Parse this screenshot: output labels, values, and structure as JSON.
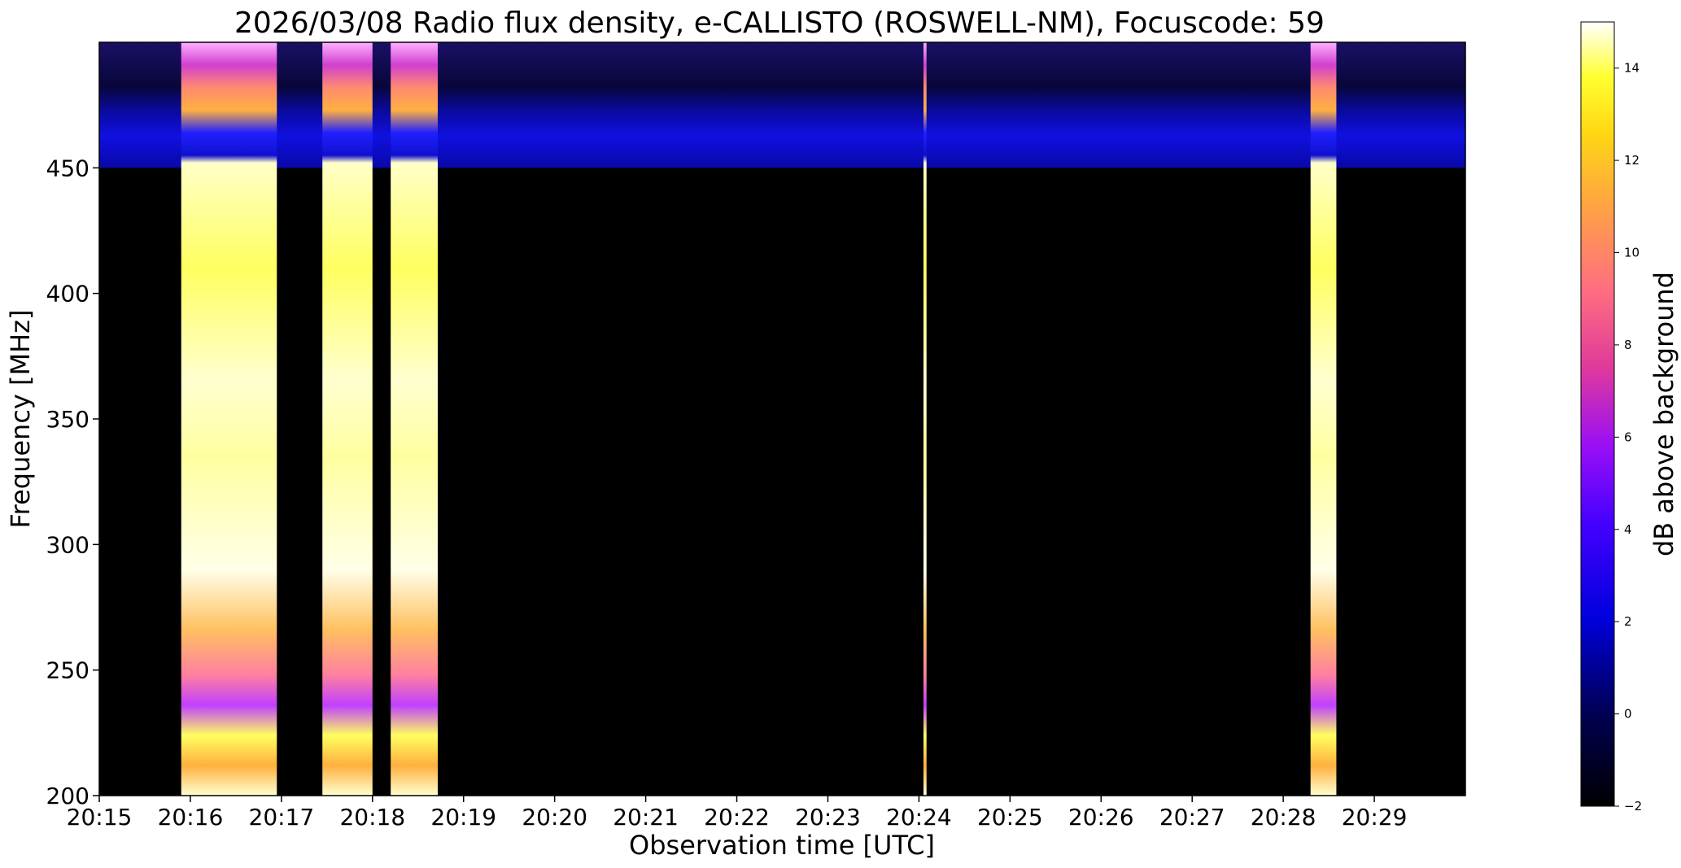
{
  "chart_data": {
    "type": "heatmap",
    "title": "2026/03/08  Radio flux density, e-CALLISTO (ROSWELL-NM), Focuscode: 59",
    "xlabel": "Observation time [UTC]",
    "ylabel": "Frequency [MHz]",
    "colorbar_label": "dB above background",
    "colormap": "gnuplot2",
    "x_range": [
      "20:15:00",
      "20:30:00"
    ],
    "y_range": [
      200,
      500
    ],
    "value_range": [
      -2,
      15
    ],
    "x_ticks": [
      "20:15",
      "20:16",
      "20:17",
      "20:18",
      "20:19",
      "20:20",
      "20:21",
      "20:22",
      "20:23",
      "20:24",
      "20:25",
      "20:26",
      "20:27",
      "20:28",
      "20:29"
    ],
    "y_ticks": [
      200,
      250,
      300,
      350,
      400,
      450
    ],
    "colorbar_ticks": [
      -2,
      0,
      2,
      4,
      6,
      8,
      10,
      12,
      14
    ],
    "background_level_dB": -2,
    "upper_band": {
      "freq_range_MHz": [
        450,
        500
      ],
      "level_dB": 3
    },
    "bursts": [
      {
        "start": "20:15:54",
        "end": "20:16:57",
        "peak_dB": 15
      },
      {
        "start": "20:17:27",
        "end": "20:18:00",
        "peak_dB": 15
      },
      {
        "start": "20:18:12",
        "end": "20:18:43",
        "peak_dB": 15
      },
      {
        "start": "20:24:03",
        "end": "20:24:05",
        "peak_dB": 15
      },
      {
        "start": "20:28:18",
        "end": "20:28:35",
        "peak_dB": 15
      }
    ],
    "grid": false
  }
}
